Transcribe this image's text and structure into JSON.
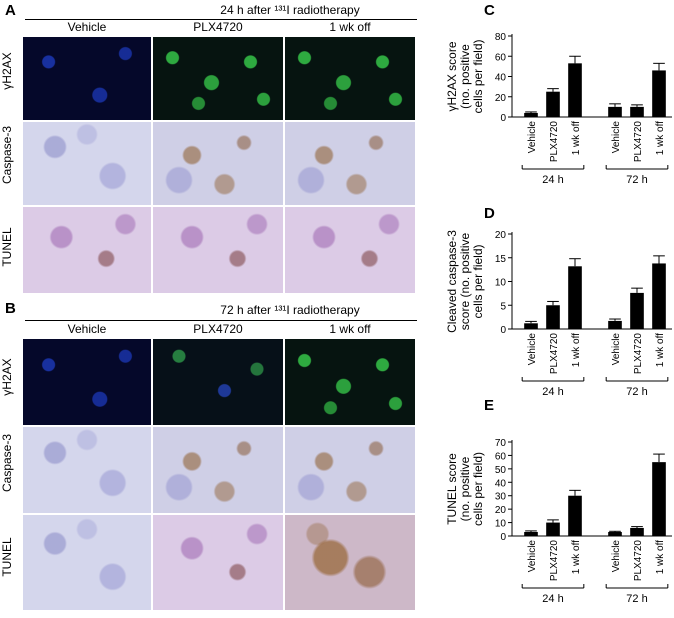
{
  "panels": {
    "A": {
      "label": "A",
      "header": "24 h after ¹³¹I radiotherapy",
      "columns": [
        "Vehicle",
        "PLX4720",
        "1 wk off"
      ],
      "rows": [
        "γH2AX",
        "Caspase-3",
        "TUNEL"
      ]
    },
    "B": {
      "label": "B",
      "header": "72 h after ¹³¹I radiotherapy",
      "columns": [
        "Vehicle",
        "PLX4720",
        "1 wk off"
      ],
      "rows": [
        "γH2AX",
        "Caspase-3",
        "TUNEL"
      ]
    }
  },
  "chart_data": [
    {
      "panel": "C",
      "type": "bar",
      "ylabel": [
        "γH2AX score",
        "(no. positive",
        "cells per field)"
      ],
      "ylim": [
        0,
        80
      ],
      "yticks": [
        0,
        20,
        40,
        60,
        80
      ],
      "categories": [
        "Vehicle",
        "PLX4720",
        "1 wk off",
        "Vehicle",
        "PLX4720",
        "1 wk off"
      ],
      "groups": [
        "24 h",
        "72 h"
      ],
      "values": [
        4,
        25,
        53,
        10,
        10,
        46
      ],
      "errors": [
        1,
        3,
        7,
        3,
        2,
        7
      ]
    },
    {
      "panel": "D",
      "type": "bar",
      "ylabel": [
        "Cleaved caspase-3",
        "score (no. positive",
        "cells per field)"
      ],
      "ylim": [
        0,
        20
      ],
      "yticks": [
        0,
        5,
        10,
        15,
        20
      ],
      "categories": [
        "Vehicle",
        "PLX4720",
        "1 wk off",
        "Vehicle",
        "PLX4720",
        "1 wk off"
      ],
      "groups": [
        "24 h",
        "72 h"
      ],
      "values": [
        1.2,
        5.0,
        13.2,
        1.7,
        7.6,
        13.8
      ],
      "errors": [
        0.4,
        0.8,
        1.6,
        0.4,
        1.0,
        1.6
      ]
    },
    {
      "panel": "E",
      "type": "bar",
      "ylabel": [
        "TUNEL score",
        "(no. positive",
        "cells per field)"
      ],
      "ylim": [
        0,
        70
      ],
      "yticks": [
        0,
        10,
        20,
        30,
        40,
        50,
        60,
        70
      ],
      "categories": [
        "Vehicle",
        "PLX4720",
        "1 wk off",
        "Vehicle",
        "PLX4720",
        "1 wk off"
      ],
      "groups": [
        "24 h",
        "72 h"
      ],
      "values": [
        3,
        10,
        30,
        3,
        6,
        55
      ],
      "errors": [
        0.8,
        2,
        4,
        0.5,
        1,
        6
      ]
    }
  ]
}
